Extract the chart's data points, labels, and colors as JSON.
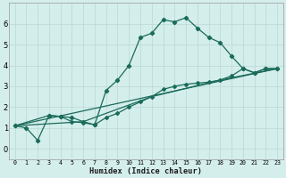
{
  "xlabel": "Humidex (Indice chaleur)",
  "background_color": "#d4eeec",
  "grid_color": "#b8d8d5",
  "line_color": "#1a6b5a",
  "xlim": [
    -0.5,
    23.5
  ],
  "ylim": [
    -0.5,
    7.0
  ],
  "xticks": [
    0,
    1,
    2,
    3,
    4,
    5,
    6,
    7,
    8,
    9,
    10,
    11,
    12,
    13,
    14,
    15,
    16,
    17,
    18,
    19,
    20,
    21,
    22,
    23
  ],
  "yticks": [
    0,
    1,
    2,
    3,
    4,
    5,
    6
  ],
  "series1": [
    [
      0,
      1.1
    ],
    [
      1,
      1.0
    ],
    [
      2,
      0.4
    ],
    [
      3,
      1.6
    ],
    [
      4,
      1.55
    ],
    [
      5,
      1.5
    ],
    [
      6,
      1.3
    ],
    [
      7,
      1.15
    ],
    [
      8,
      2.8
    ],
    [
      9,
      3.3
    ],
    [
      10,
      4.0
    ],
    [
      11,
      5.35
    ],
    [
      12,
      5.55
    ],
    [
      13,
      6.2
    ],
    [
      14,
      6.1
    ],
    [
      15,
      6.3
    ],
    [
      16,
      5.8
    ],
    [
      17,
      5.35
    ],
    [
      18,
      5.1
    ],
    [
      19,
      4.45
    ],
    [
      20,
      3.85
    ],
    [
      21,
      3.65
    ],
    [
      22,
      3.85
    ],
    [
      23,
      3.85
    ]
  ],
  "series2": [
    [
      0,
      1.1
    ],
    [
      23,
      3.85
    ]
  ],
  "series3": [
    [
      0,
      1.1
    ],
    [
      3,
      1.6
    ],
    [
      4,
      1.55
    ],
    [
      5,
      1.3
    ],
    [
      6,
      1.25
    ],
    [
      7,
      1.15
    ],
    [
      8,
      1.5
    ],
    [
      9,
      1.7
    ],
    [
      10,
      2.0
    ],
    [
      11,
      2.25
    ],
    [
      12,
      2.5
    ],
    [
      13,
      2.85
    ],
    [
      14,
      3.0
    ],
    [
      15,
      3.1
    ],
    [
      16,
      3.15
    ],
    [
      17,
      3.2
    ],
    [
      18,
      3.3
    ],
    [
      19,
      3.5
    ],
    [
      20,
      3.85
    ],
    [
      21,
      3.65
    ],
    [
      22,
      3.85
    ],
    [
      23,
      3.85
    ]
  ],
  "series4": [
    [
      0,
      1.1
    ],
    [
      6,
      1.3
    ],
    [
      12,
      2.5
    ],
    [
      18,
      3.3
    ],
    [
      23,
      3.85
    ]
  ]
}
